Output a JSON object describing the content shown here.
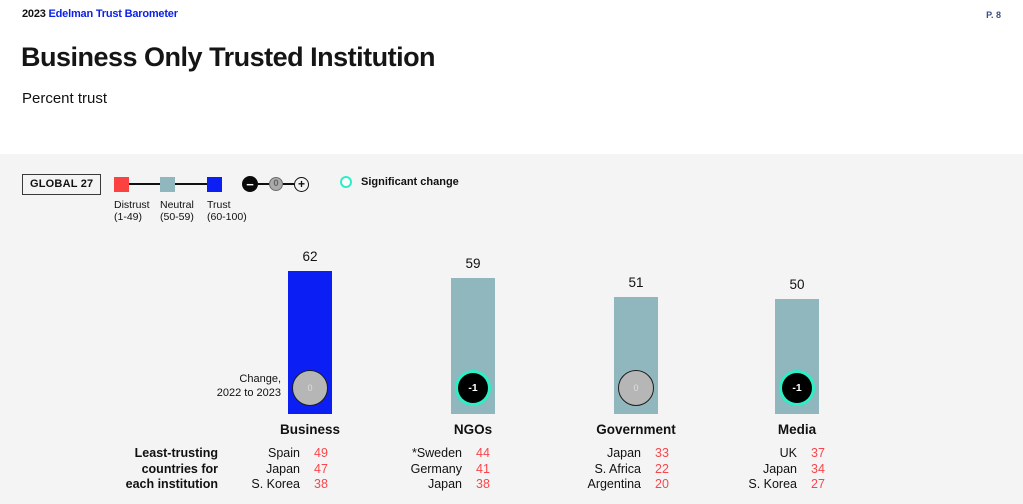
{
  "theme": {
    "brand": "#0B21E8",
    "sig": "#2BEFC5",
    "valred": "#F9464C",
    "panelbg": "#F4F4F4",
    "pagenum": "#3D4C7C"
  },
  "header": {
    "year": "2023",
    "brand": "Edelman Trust Barometer",
    "page": "P. 8"
  },
  "title": "Business Only Trusted Institution",
  "subtitle": "Percent trust",
  "legend": {
    "scope": "GLOBAL 27",
    "scale": [
      {
        "label": "Distrust",
        "range": "(1-49)",
        "color": "#FC4141"
      },
      {
        "label": "Neutral",
        "range": "(50-59)",
        "color": "#8FB7BD"
      },
      {
        "label": "Trust",
        "range": "(60-100)",
        "color": "#0B1FF5"
      }
    ],
    "change_indicator": {
      "minus": "−",
      "zero": "0",
      "plus": "+"
    },
    "significant_change_label": "Significant change"
  },
  "chart_data": {
    "type": "bar",
    "title": "Business Only Trusted Institution",
    "subtitle": "Percent trust",
    "scope": "GLOBAL 27",
    "categories": [
      "Business",
      "NGOs",
      "Government",
      "Media"
    ],
    "values": [
      62,
      59,
      51,
      50
    ],
    "changes": [
      0,
      -1,
      0,
      -1
    ],
    "significant_change": [
      false,
      true,
      false,
      true
    ],
    "bar_colors": [
      "#0B1FF5",
      "#8FB7BD",
      "#8FB7BD",
      "#8FB7BD"
    ],
    "change_note_lines": [
      "Change,",
      "2022 to 2023"
    ],
    "ylim": [
      0,
      100
    ],
    "grid": false,
    "legend_position": "top-left"
  },
  "least_trusting": {
    "heading_lines": [
      "Least-trusting",
      "countries for",
      "each institution"
    ],
    "columns": [
      {
        "institution": "Business",
        "rows": [
          {
            "country": "Spain",
            "value": 49
          },
          {
            "country": "Japan",
            "value": 47
          },
          {
            "country": "S. Korea",
            "value": 38
          }
        ]
      },
      {
        "institution": "NGOs",
        "rows": [
          {
            "country": "*Sweden",
            "value": 44
          },
          {
            "country": "Germany",
            "value": 41
          },
          {
            "country": "Japan",
            "value": 38
          }
        ]
      },
      {
        "institution": "Government",
        "rows": [
          {
            "country": "Japan",
            "value": 33
          },
          {
            "country": "S. Africa",
            "value": 22
          },
          {
            "country": "Argentina",
            "value": 20
          }
        ]
      },
      {
        "institution": "Media",
        "rows": [
          {
            "country": "UK",
            "value": 37
          },
          {
            "country": "Japan",
            "value": 34
          },
          {
            "country": "S. Korea",
            "value": 27
          }
        ]
      }
    ]
  }
}
